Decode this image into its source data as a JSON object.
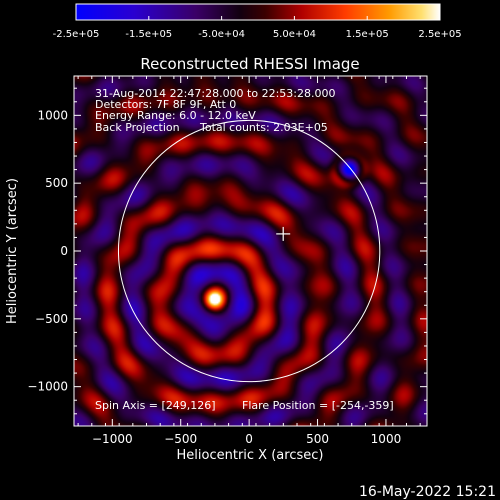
{
  "colorbar": {
    "tick_labels": [
      "-2.5e+05",
      "-1.5e+05",
      "-5.0e+04",
      "5.0e+04",
      "1.5e+05",
      "2.5e+05"
    ],
    "range": [
      -250000,
      250000
    ],
    "colormap": [
      "#0000ff",
      "#2200cc",
      "#330066",
      "#000000",
      "#660000",
      "#cc0000",
      "#ff4400",
      "#ff9900",
      "#ffdd55",
      "#ffffff"
    ]
  },
  "chart_data": {
    "type": "heatmap",
    "title": "Reconstructed RHESSI Image",
    "xlabel": "Heliocentric X (arcsec)",
    "ylabel": "Heliocentric Y (arcsec)",
    "xlim": [
      -1280,
      1300
    ],
    "ylim": [
      -1290,
      1290
    ],
    "x_ticks": [
      -1000,
      -500,
      0,
      500,
      1000
    ],
    "y_ticks": [
      -1000,
      -500,
      0,
      500,
      1000
    ],
    "x_tick_labels": [
      "−1000",
      "−500",
      "0",
      "500",
      "1000"
    ],
    "y_tick_labels": [
      "−1000",
      "−500",
      "0",
      "500",
      "1000"
    ],
    "annotations": [
      "31-Aug-2014 22:47:28.000 to 22:53:28.000",
      "Detectors: 7F 8F 9F, Att 0",
      "Energy Range: 6.0 - 12.0 keV",
      "Back Projection",
      "Total counts: 2.03E+05"
    ],
    "footer_left": "Spin Axis = [249,126]",
    "footer_right": "Flare Position = [-254,-359]",
    "sources": [
      {
        "x": -254,
        "y": -359,
        "value": 250000,
        "kind": "peak"
      },
      {
        "x": 730,
        "y": 600,
        "value": -200000,
        "kind": "negative"
      }
    ],
    "solar_limb": {
      "center": [
        0,
        0
      ],
      "radius_arcsec": 955
    },
    "spin_axis": {
      "x": 249,
      "y": 126
    }
  },
  "timestamp": "16-May-2022 15:21"
}
